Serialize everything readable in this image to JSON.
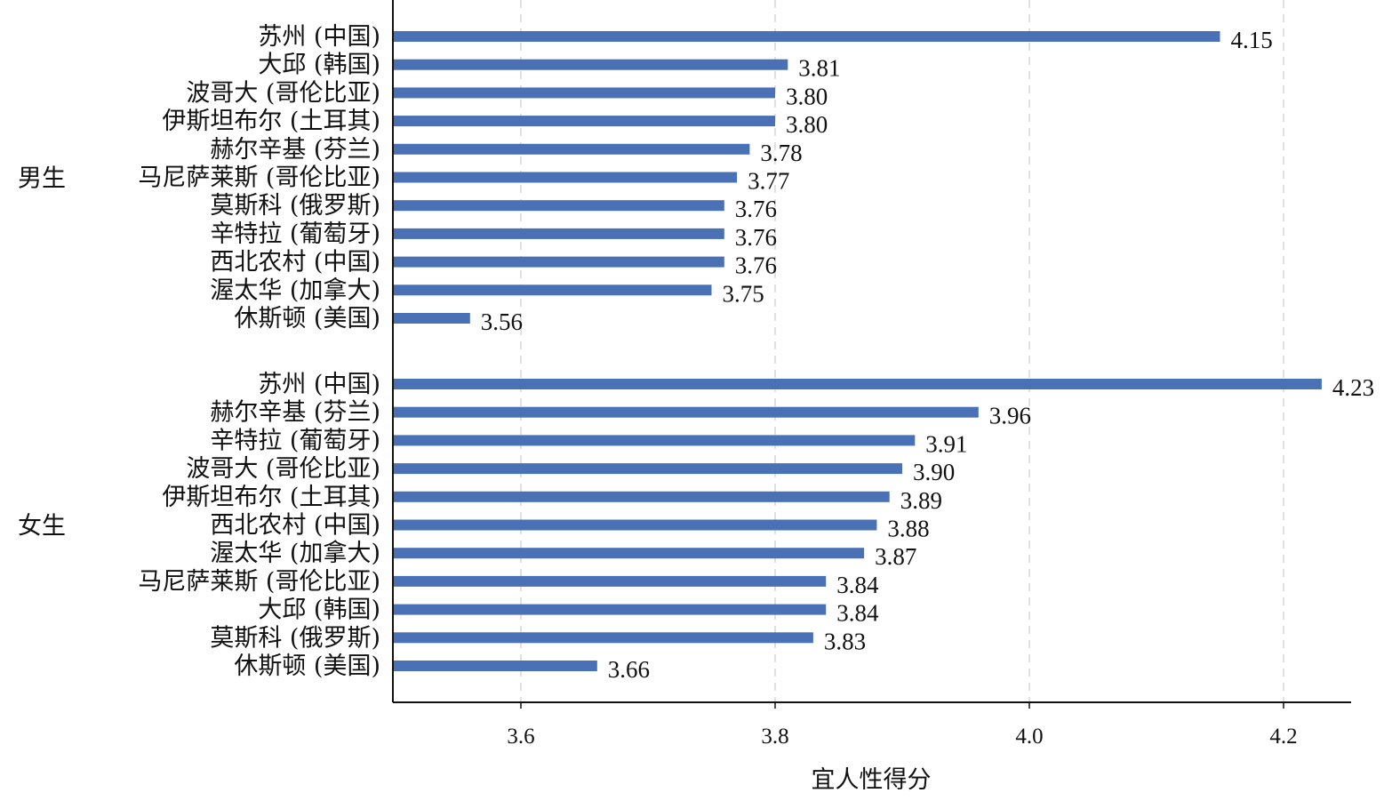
{
  "chart_data": {
    "type": "bar",
    "orientation": "horizontal",
    "xlabel": "宜人性得分",
    "xlim": [
      3.5,
      4.25
    ],
    "xticks": [
      3.6,
      3.8,
      4.0,
      4.2
    ],
    "xtick_labels": [
      "3.6",
      "3.8",
      "4.0",
      "4.2"
    ],
    "grid": "vertical dashed",
    "bar_color": "#4a70b5",
    "groups": [
      {
        "label": "男生",
        "bars": [
          {
            "category": "苏州 (中国)",
            "value": 4.15,
            "label": "4.15"
          },
          {
            "category": "大邱 (韩国)",
            "value": 3.81,
            "label": "3.81"
          },
          {
            "category": "波哥大 (哥伦比亚)",
            "value": 3.8,
            "label": "3.80"
          },
          {
            "category": "伊斯坦布尔 (土耳其)",
            "value": 3.8,
            "label": "3.80"
          },
          {
            "category": "赫尔辛基 (芬兰)",
            "value": 3.78,
            "label": "3.78"
          },
          {
            "category": "马尼萨莱斯 (哥伦比亚)",
            "value": 3.77,
            "label": "3.77"
          },
          {
            "category": "莫斯科 (俄罗斯)",
            "value": 3.76,
            "label": "3.76"
          },
          {
            "category": "辛特拉 (葡萄牙)",
            "value": 3.76,
            "label": "3.76"
          },
          {
            "category": "西北农村 (中国)",
            "value": 3.76,
            "label": "3.76"
          },
          {
            "category": "渥太华 (加拿大)",
            "value": 3.75,
            "label": "3.75"
          },
          {
            "category": "休斯顿 (美国)",
            "value": 3.56,
            "label": "3.56"
          }
        ]
      },
      {
        "label": "女生",
        "bars": [
          {
            "category": "苏州 (中国)",
            "value": 4.23,
            "label": "4.23"
          },
          {
            "category": "赫尔辛基 (芬兰)",
            "value": 3.96,
            "label": "3.96"
          },
          {
            "category": "辛特拉 (葡萄牙)",
            "value": 3.91,
            "label": "3.91"
          },
          {
            "category": "波哥大 (哥伦比亚)",
            "value": 3.9,
            "label": "3.90"
          },
          {
            "category": "伊斯坦布尔 (土耳其)",
            "value": 3.89,
            "label": "3.89"
          },
          {
            "category": "西北农村 (中国)",
            "value": 3.88,
            "label": "3.88"
          },
          {
            "category": "渥太华 (加拿大)",
            "value": 3.87,
            "label": "3.87"
          },
          {
            "category": "马尼萨莱斯 (哥伦比亚)",
            "value": 3.84,
            "label": "3.84"
          },
          {
            "category": "大邱 (韩国)",
            "value": 3.84,
            "label": "3.84"
          },
          {
            "category": "莫斯科 (俄罗斯)",
            "value": 3.83,
            "label": "3.83"
          },
          {
            "category": "休斯顿 (美国)",
            "value": 3.66,
            "label": "3.66"
          }
        ]
      }
    ]
  }
}
